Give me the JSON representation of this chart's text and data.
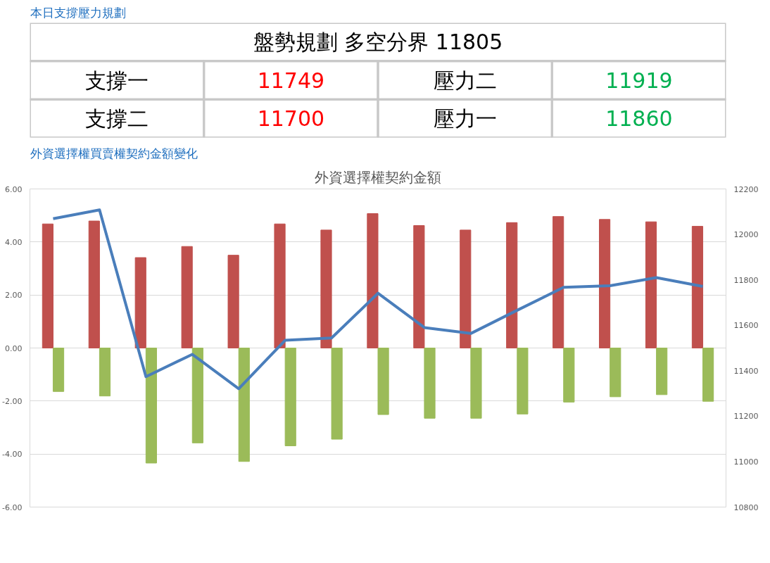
{
  "chart_data": [
    {
      "type": "other",
      "title": "本日支撐壓力規劃",
      "annotations": [
        "盤勢規劃 多空分界 11805",
        "支撐一",
        "11749",
        "壓力二",
        "11919",
        "支撐二",
        "11700",
        "壓力一",
        "11860"
      ],
      "colors": [
        "#000000",
        "#000000",
        "#ff0000",
        "#000000",
        "#00b050",
        "#000000",
        "#ff0000",
        "#000000",
        "#00b050"
      ]
    },
    {
      "type": "bar",
      "title": "外資選擇權買賣權契約金額變化",
      "subtitle": "外資選擇權契約金額",
      "categories": [
        null,
        null,
        null,
        null,
        null,
        null,
        null,
        null,
        null,
        null,
        null,
        null,
        null,
        null,
        null
      ],
      "series": [
        {
          "color": "#c0504d",
          "values": [
            4.68,
            4.79,
            3.41,
            3.83,
            3.5,
            4.68,
            4.45,
            5.07,
            4.62,
            4.45,
            4.73,
            4.96,
            4.85,
            4.76,
            4.59
          ]
        },
        {
          "color": "#9bbb59",
          "values": [
            -1.64,
            -1.81,
            -4.34,
            -3.58,
            -4.28,
            -3.69,
            -3.44,
            -2.51,
            -2.65,
            -2.65,
            -2.49,
            -2.04,
            -1.84,
            -1.76,
            -2.01
          ]
        },
        {
          "type": "line",
          "axis": "y2",
          "color": "#4a7ebb",
          "values": [
            12069,
            12108,
            11374,
            11472,
            11321,
            11534,
            11544,
            11741,
            11590,
            11564,
            11666,
            11767,
            11774,
            11810,
            11771
          ]
        }
      ],
      "ylim": [
        -6,
        6
      ],
      "yticks": [
        {
          "value": -6,
          "label": "-6.00"
        },
        {
          "value": -4,
          "label": "-4.00"
        },
        {
          "value": -2,
          "label": "-2.00"
        },
        {
          "value": 0,
          "label": "0.00"
        },
        {
          "value": 2,
          "label": "2.00"
        },
        {
          "value": 4,
          "label": "4.00"
        },
        {
          "value": 6,
          "label": "6.00"
        }
      ],
      "y2lim": [
        10800,
        12200
      ],
      "y2ticks": [
        10800,
        11000,
        11200,
        11400,
        11600,
        11800,
        12000,
        12200
      ],
      "grid": "y",
      "marker": "none",
      "line_style": "solid"
    }
  ]
}
